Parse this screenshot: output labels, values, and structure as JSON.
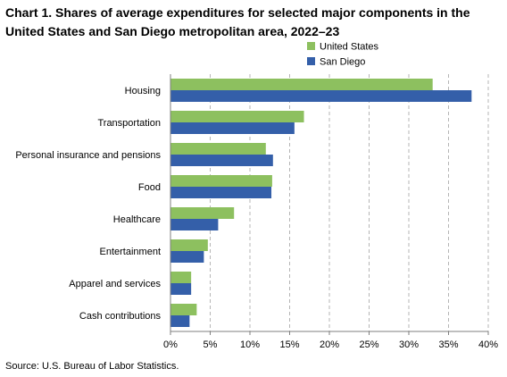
{
  "title": "Chart 1. Shares of average expenditures for selected major components in the United States and San Diego metropolitan area, 2022–23",
  "source": "Source: U.S. Bureau of Labor Statistics.",
  "colors": {
    "united_states": "#8dc05f",
    "san_diego": "#345fa9",
    "grid": "#b5b5b5"
  },
  "chart_data": {
    "type": "bar",
    "orientation": "horizontal",
    "title": "Chart 1. Shares of average expenditures for selected major components in the United States and San Diego metropolitan area, 2022–23",
    "categories": [
      "Housing",
      "Transportation",
      "Personal insurance and pensions",
      "Food",
      "Healthcare",
      "Entertainment",
      "Apparel and services",
      "Cash contributions"
    ],
    "series": [
      {
        "name": "United States",
        "color": "#8dc05f",
        "values": [
          33.0,
          16.8,
          12.0,
          12.8,
          8.0,
          4.7,
          2.6,
          3.3
        ]
      },
      {
        "name": "San Diego",
        "color": "#345fa9",
        "values": [
          37.9,
          15.6,
          12.9,
          12.7,
          6.0,
          4.2,
          2.6,
          2.4
        ]
      }
    ],
    "xlim": [
      0,
      40
    ],
    "xticks": [
      "0%",
      "5%",
      "10%",
      "15%",
      "20%",
      "25%",
      "30%",
      "35%",
      "40%"
    ],
    "grid": "vertical-dashed",
    "legend": "top-right"
  }
}
